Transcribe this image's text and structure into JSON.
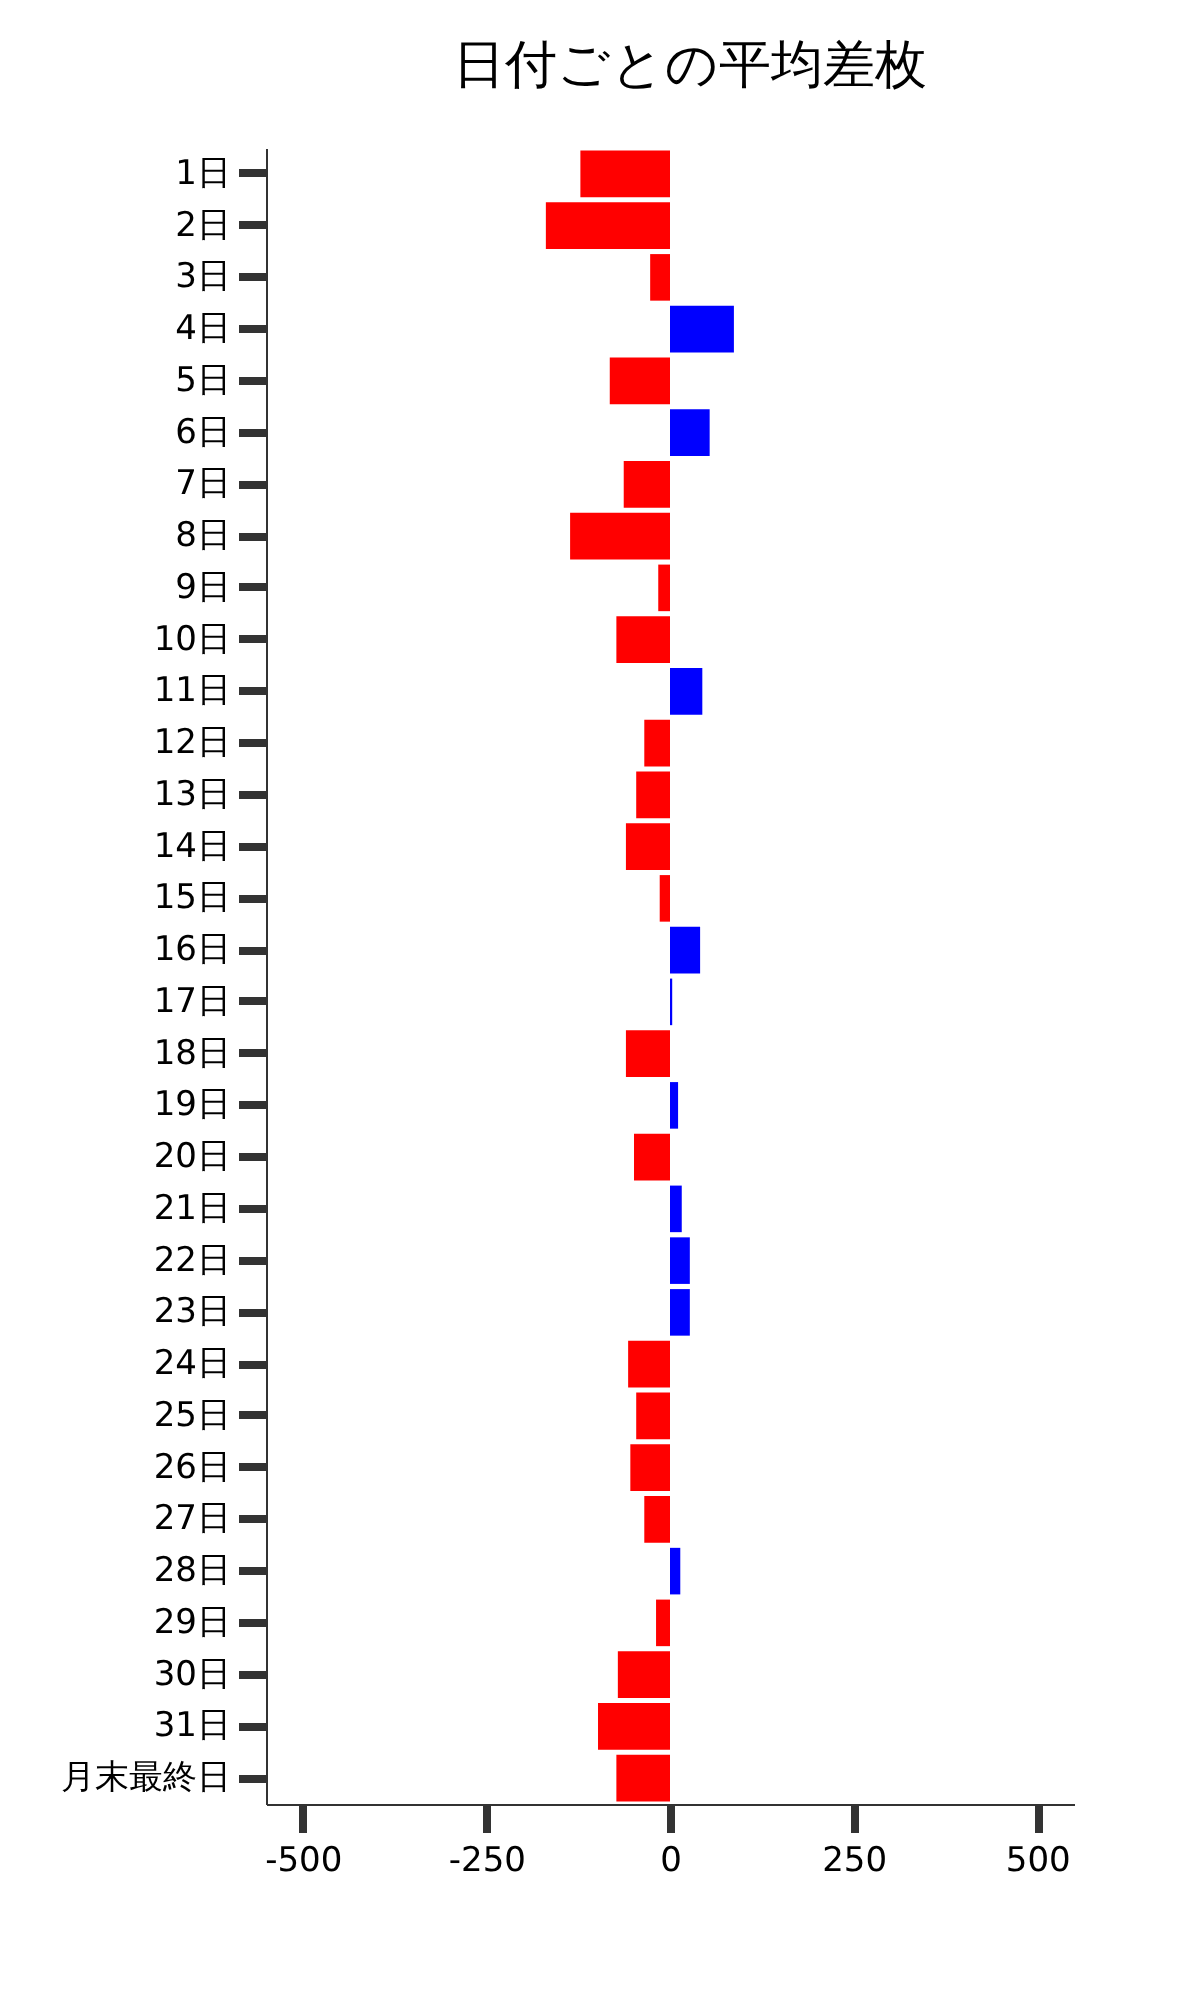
{
  "chart_data": {
    "type": "bar",
    "orientation": "horizontal",
    "title": "日付ごとの平均差枚",
    "categories": [
      "1日",
      "2日",
      "3日",
      "4日",
      "5日",
      "6日",
      "7日",
      "8日",
      "9日",
      "10日",
      "11日",
      "12日",
      "13日",
      "14日",
      "15日",
      "16日",
      "17日",
      "18日",
      "19日",
      "20日",
      "21日",
      "22日",
      "23日",
      "24日",
      "25日",
      "26日",
      "27日",
      "28日",
      "29日",
      "30日",
      "31日",
      "月末最終日"
    ],
    "values": [
      -122,
      -169,
      -27,
      87,
      -82,
      54,
      -63,
      -136,
      -16,
      -73,
      44,
      -35,
      -46,
      -60,
      -14,
      41,
      3,
      -60,
      11,
      -49,
      16,
      27,
      27,
      -57,
      -46,
      -54,
      -35,
      14,
      -19,
      -71,
      -98,
      -73
    ],
    "colors": [
      "#ff0000",
      "#ff0000",
      "#ff0000",
      "#0000ff",
      "#ff0000",
      "#0000ff",
      "#ff0000",
      "#ff0000",
      "#ff0000",
      "#ff0000",
      "#0000ff",
      "#ff0000",
      "#ff0000",
      "#ff0000",
      "#ff0000",
      "#0000ff",
      "#0000ff",
      "#ff0000",
      "#0000ff",
      "#ff0000",
      "#0000ff",
      "#0000ff",
      "#0000ff",
      "#ff0000",
      "#ff0000",
      "#ff0000",
      "#ff0000",
      "#0000ff",
      "#ff0000",
      "#ff0000",
      "#ff0000",
      "#ff0000"
    ],
    "xlim": [
      -550,
      550
    ],
    "xticks": [
      -500,
      -250,
      0,
      250,
      500
    ],
    "grid": false
  }
}
